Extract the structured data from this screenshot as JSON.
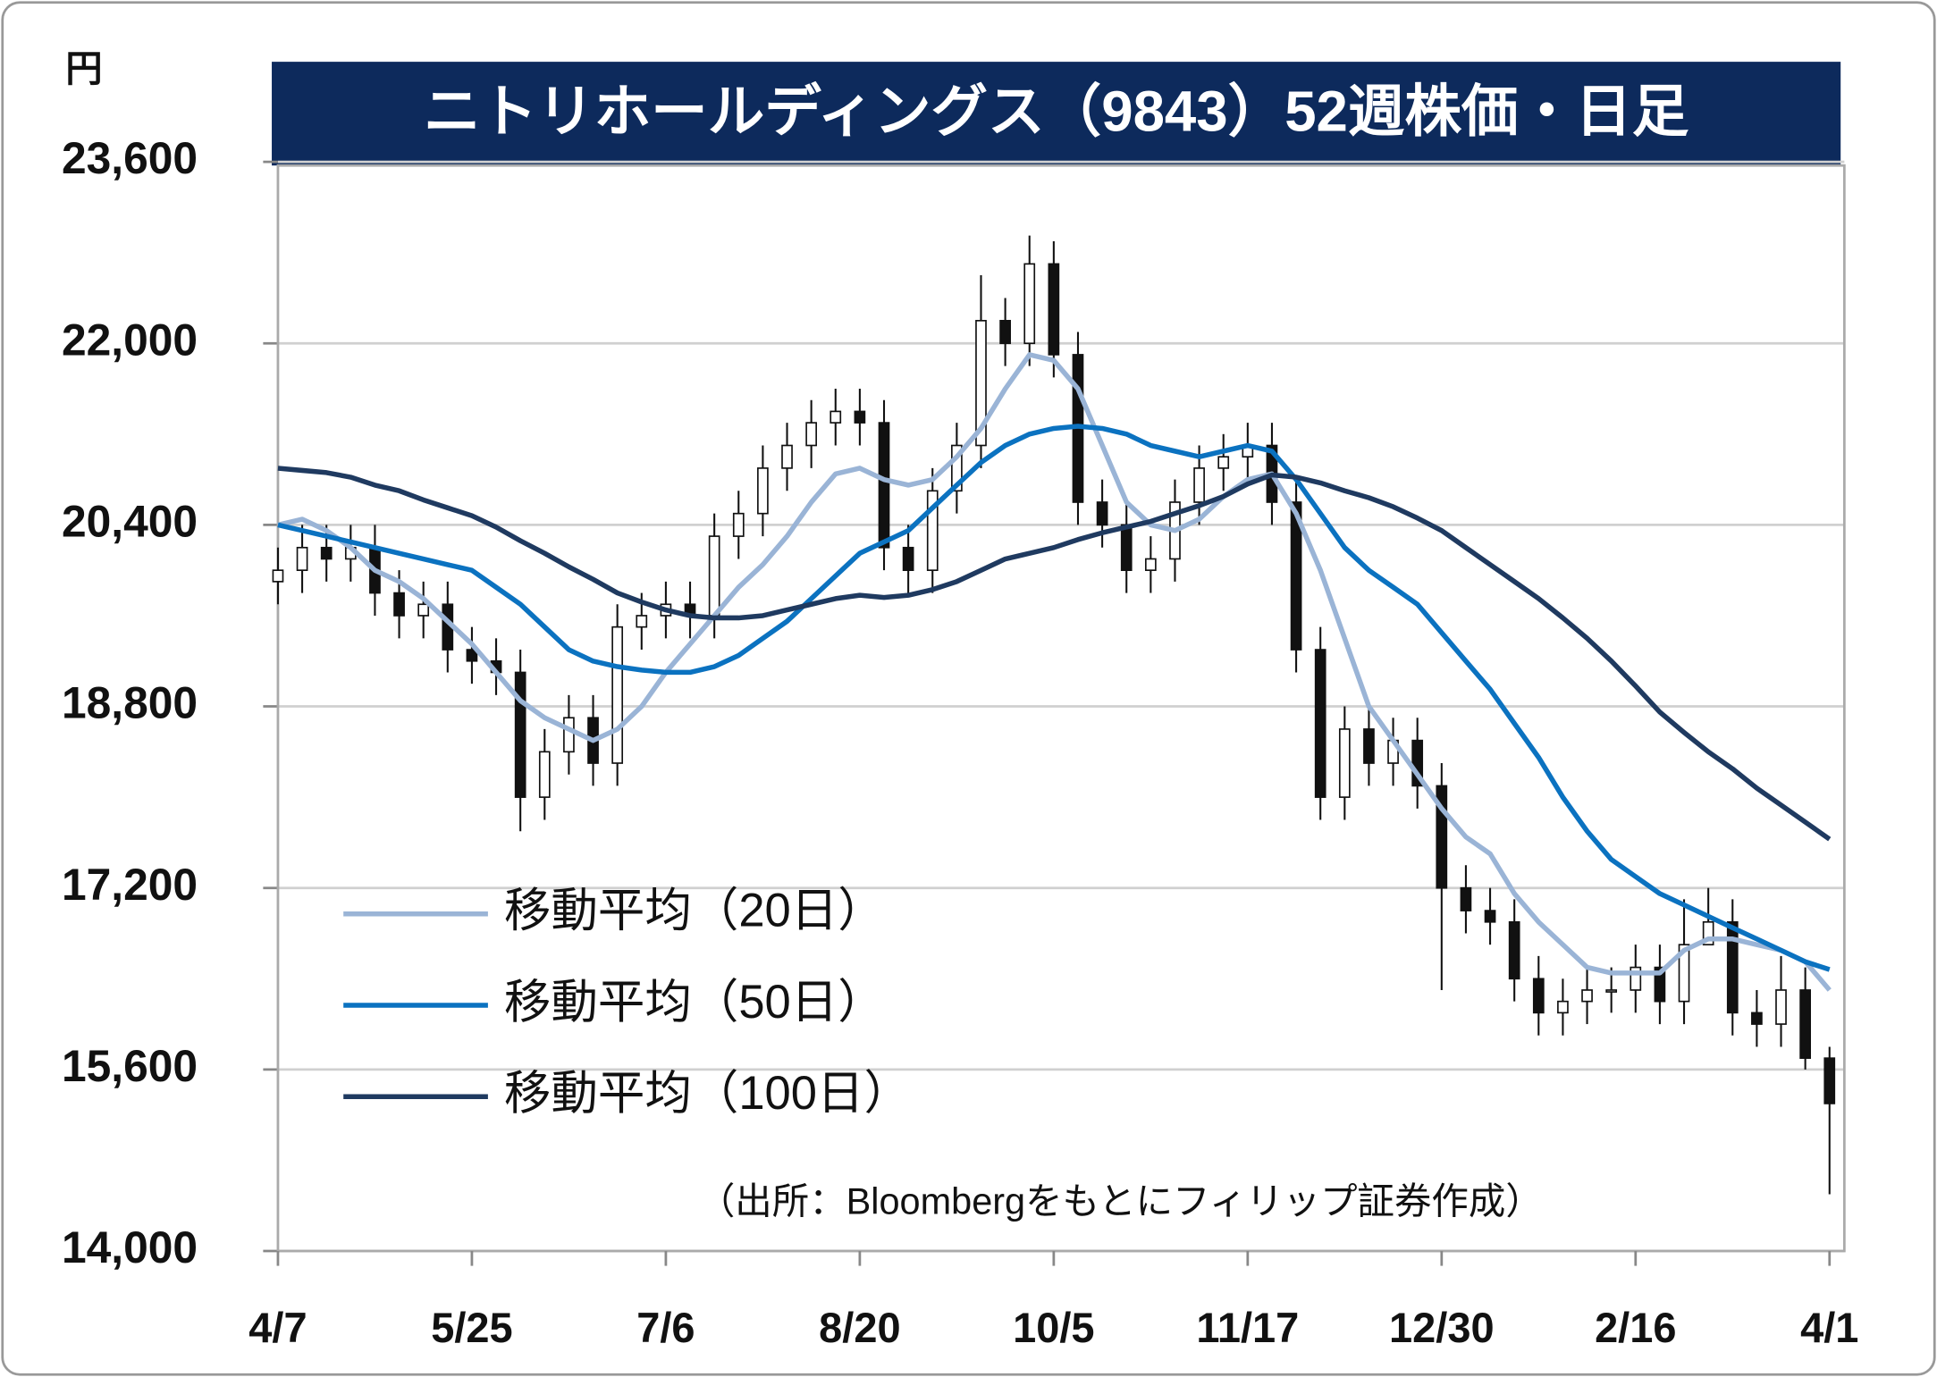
{
  "chart_data": {
    "type": "candlestick",
    "title": "ニトリホールディングス（9843）52週株価・日足",
    "y_label": "円",
    "source": "（出所：Bloombergをもとにフィリップ証券作成）",
    "categories": [
      "4/7",
      null,
      null,
      null,
      null,
      null,
      null,
      null,
      "5/25",
      null,
      null,
      null,
      null,
      null,
      null,
      null,
      "7/6",
      null,
      null,
      null,
      null,
      null,
      null,
      null,
      "8/20",
      null,
      null,
      null,
      null,
      null,
      null,
      null,
      "10/5",
      null,
      null,
      null,
      null,
      null,
      null,
      null,
      "11/17",
      null,
      null,
      null,
      null,
      null,
      null,
      null,
      "12/30",
      null,
      null,
      null,
      null,
      null,
      null,
      null,
      "2/16",
      null,
      null,
      null,
      null,
      null,
      null,
      null,
      "4/1"
    ],
    "open": [
      19900,
      20000,
      20200,
      20100,
      20200,
      19800,
      19600,
      19700,
      19300,
      19200,
      19100,
      18000,
      18400,
      18700,
      18300,
      19500,
      19600,
      19700,
      19600,
      20300,
      20500,
      20900,
      21100,
      21300,
      21400,
      21300,
      20200,
      20000,
      20700,
      21100,
      22200,
      22000,
      22700,
      21900,
      20600,
      20400,
      20000,
      20100,
      20600,
      20900,
      21000,
      21100,
      20600,
      19300,
      18000,
      18600,
      18300,
      18500,
      18100,
      17200,
      17000,
      16900,
      16400,
      16100,
      16200,
      16300,
      16300,
      16500,
      16200,
      16700,
      16900,
      16100,
      16000,
      16300,
      15700
    ],
    "high": [
      20200,
      20400,
      20400,
      20400,
      20400,
      20000,
      19900,
      19900,
      19500,
      19400,
      19300,
      18600,
      18900,
      18900,
      19700,
      19800,
      19900,
      19900,
      20500,
      20700,
      21100,
      21300,
      21500,
      21600,
      21600,
      21500,
      20400,
      20900,
      21300,
      22600,
      22400,
      22950,
      22900,
      22100,
      20800,
      20600,
      20300,
      20800,
      21100,
      21200,
      21300,
      21300,
      20800,
      19500,
      18800,
      18800,
      18700,
      18700,
      18300,
      17400,
      17200,
      17100,
      16600,
      16400,
      16500,
      16500,
      16700,
      16700,
      17100,
      17200,
      17100,
      16300,
      16600,
      16500,
      15800
    ],
    "low": [
      19700,
      19800,
      19900,
      19900,
      19600,
      19400,
      19400,
      19100,
      19000,
      18900,
      17700,
      17800,
      18200,
      18100,
      18100,
      19300,
      19400,
      19400,
      19400,
      20100,
      20300,
      20700,
      20900,
      21100,
      21100,
      20000,
      19800,
      19800,
      20500,
      20900,
      21800,
      21800,
      21700,
      20400,
      20200,
      19800,
      19800,
      19900,
      20400,
      20700,
      20800,
      20400,
      19100,
      17800,
      17800,
      18100,
      18100,
      17900,
      16300,
      16800,
      16700,
      16200,
      15900,
      15900,
      16000,
      16100,
      16100,
      16000,
      16000,
      16700,
      15900,
      15800,
      15800,
      15600,
      14500
    ],
    "close": [
      20000,
      20200,
      20100,
      20200,
      19800,
      19600,
      19700,
      19300,
      19200,
      19100,
      18000,
      18400,
      18700,
      18300,
      19500,
      19600,
      19700,
      19600,
      20300,
      20500,
      20900,
      21100,
      21300,
      21400,
      21300,
      20200,
      20000,
      20700,
      21100,
      22200,
      22000,
      22700,
      21900,
      20600,
      20400,
      20000,
      20100,
      20600,
      20900,
      21000,
      21100,
      20600,
      19300,
      18000,
      18600,
      18300,
      18500,
      18100,
      17200,
      17000,
      16900,
      16400,
      16100,
      16200,
      16300,
      16300,
      16500,
      16200,
      16700,
      16900,
      16100,
      16000,
      16300,
      15700,
      15300
    ],
    "up_color": "#ffffff",
    "down_color": "#111111",
    "series": [
      {
        "name": "移動平均（20日）",
        "color": "#9ab4d6",
        "values": [
          20400,
          20450,
          20350,
          20200,
          20000,
          19900,
          19750,
          19550,
          19350,
          19100,
          18850,
          18700,
          18600,
          18500,
          18600,
          18800,
          19100,
          19350,
          19600,
          19850,
          20050,
          20300,
          20600,
          20850,
          20900,
          20800,
          20750,
          20800,
          21000,
          21250,
          21600,
          21900,
          21850,
          21600,
          21100,
          20600,
          20400,
          20350,
          20450,
          20650,
          20800,
          20850,
          20500,
          20000,
          19400,
          18800,
          18500,
          18200,
          17900,
          17650,
          17500,
          17150,
          16900,
          16700,
          16500,
          16450,
          16450,
          16450,
          16650,
          16750,
          16750,
          16700,
          16650,
          16550,
          16300
        ]
      },
      {
        "name": "移動平均（50日）",
        "color": "#0b72c0",
        "values": [
          20400,
          20350,
          20300,
          20250,
          20200,
          20150,
          20100,
          20050,
          20000,
          19850,
          19700,
          19500,
          19300,
          19200,
          19150,
          19120,
          19100,
          19100,
          19150,
          19250,
          19400,
          19550,
          19750,
          19950,
          20150,
          20250,
          20350,
          20550,
          20750,
          20950,
          21100,
          21200,
          21250,
          21270,
          21250,
          21200,
          21100,
          21050,
          21000,
          21050,
          21100,
          21050,
          20800,
          20500,
          20200,
          20000,
          19850,
          19700,
          19450,
          19200,
          18950,
          18650,
          18350,
          18000,
          17700,
          17450,
          17300,
          17150,
          17050,
          16950,
          16850,
          16750,
          16650,
          16550,
          16480
        ]
      },
      {
        "name": "移動平均（100日）",
        "color": "#1f3a60",
        "values": [
          20900,
          20880,
          20860,
          20820,
          20750,
          20700,
          20620,
          20550,
          20480,
          20380,
          20260,
          20150,
          20030,
          19920,
          19800,
          19720,
          19650,
          19600,
          19580,
          19580,
          19600,
          19650,
          19700,
          19750,
          19780,
          19760,
          19780,
          19830,
          19900,
          20000,
          20100,
          20150,
          20200,
          20270,
          20330,
          20380,
          20430,
          20500,
          20570,
          20650,
          20760,
          20840,
          20820,
          20770,
          20700,
          20640,
          20560,
          20460,
          20350,
          20200,
          20050,
          19900,
          19750,
          19580,
          19400,
          19200,
          18980,
          18750,
          18570,
          18400,
          18250,
          18080,
          17930,
          17780,
          17630
        ]
      }
    ],
    "ylim": [
      14000,
      23600
    ],
    "yticks": [
      {
        "value": 14000,
        "label": "14,000"
      },
      {
        "value": 15600,
        "label": "15,600"
      },
      {
        "value": 17200,
        "label": "17,200"
      },
      {
        "value": 18800,
        "label": "18,800"
      },
      {
        "value": 20400,
        "label": "20,400"
      },
      {
        "value": 22000,
        "label": "22,000"
      },
      {
        "value": 23600,
        "label": "23,600"
      }
    ],
    "grid": true,
    "legend": "lower-left"
  }
}
